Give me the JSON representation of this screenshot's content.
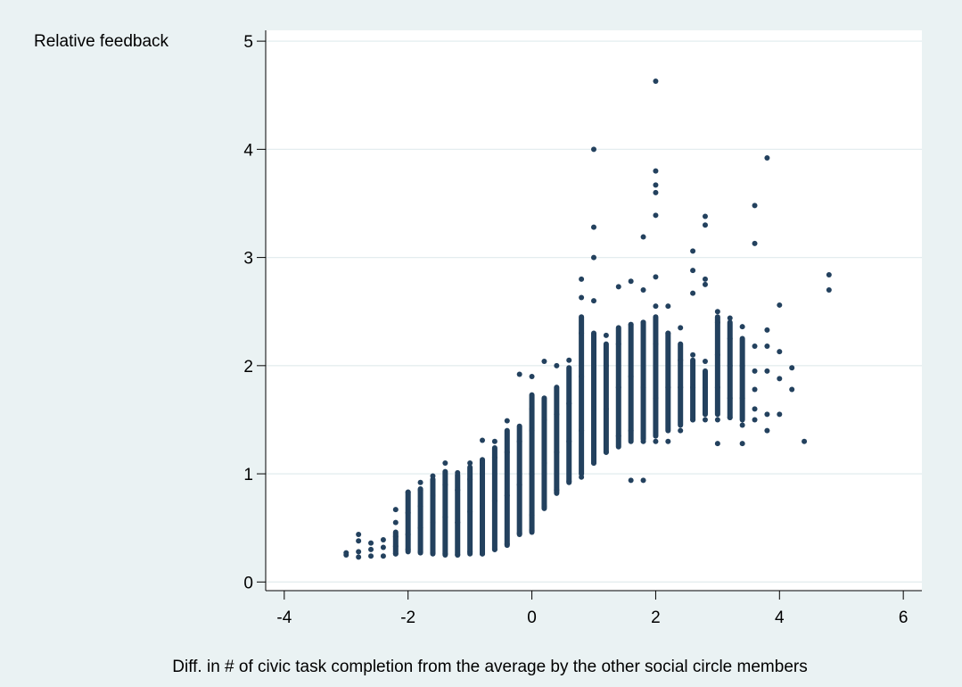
{
  "chart_data": {
    "type": "scatter",
    "title": "",
    "xlabel": "Diff. in # of civic task completion from the average by the other social circle members",
    "ylabel": "Relative feedback",
    "xlim": [
      -4.3,
      6.3
    ],
    "ylim": [
      -0.08,
      5.1
    ],
    "xticks": [
      -4,
      -2,
      0,
      2,
      4,
      6
    ],
    "yticks": [
      0,
      1,
      2,
      3,
      4,
      5
    ],
    "grid": true,
    "background_color": "#eaf2f3",
    "plot_background_color": "#ffffff",
    "grid_color": "#e4edef",
    "marker_color": "#23415e",
    "series": [
      {
        "points": [
          [
            -3.0,
            0.25
          ],
          [
            -3.0,
            0.27
          ],
          [
            -2.8,
            0.23
          ],
          [
            -2.8,
            0.28
          ],
          [
            -2.8,
            0.38
          ],
          [
            -2.8,
            0.44
          ],
          [
            -2.6,
            0.24
          ],
          [
            -2.6,
            0.3
          ],
          [
            -2.6,
            0.36
          ],
          [
            -2.4,
            0.24
          ],
          [
            -2.4,
            0.32
          ],
          [
            -2.4,
            0.39
          ],
          [
            -2.2,
            0.26
          ],
          [
            -2.2,
            0.33
          ],
          [
            -2.2,
            0.42
          ],
          [
            -2.2,
            0.55
          ],
          [
            -2.2,
            0.67
          ],
          [
            -2.0,
            0.3
          ],
          [
            -2.0,
            0.44
          ],
          [
            -2.0,
            0.64
          ],
          [
            -2.0,
            0.83
          ],
          [
            -1.8,
            0.28
          ],
          [
            -1.8,
            0.5
          ],
          [
            -1.8,
            0.7
          ],
          [
            -1.8,
            0.85
          ],
          [
            -1.8,
            0.92
          ],
          [
            -1.6,
            0.27
          ],
          [
            -1.6,
            0.55
          ],
          [
            -1.6,
            0.8
          ],
          [
            -1.6,
            0.98
          ],
          [
            -1.4,
            0.26
          ],
          [
            -1.4,
            0.6
          ],
          [
            -1.4,
            0.9
          ],
          [
            -1.4,
            1.1
          ],
          [
            -1.2,
            0.25
          ],
          [
            -1.2,
            0.55
          ],
          [
            -1.2,
            0.85
          ],
          [
            -1.2,
            1.01
          ],
          [
            -1.0,
            0.28
          ],
          [
            -1.0,
            0.65
          ],
          [
            -1.0,
            0.95
          ],
          [
            -1.0,
            1.1
          ],
          [
            -0.8,
            0.26
          ],
          [
            -0.8,
            0.7
          ],
          [
            -0.8,
            1.1
          ],
          [
            -0.8,
            1.31
          ],
          [
            -0.6,
            0.3
          ],
          [
            -0.6,
            0.75
          ],
          [
            -0.6,
            1.15
          ],
          [
            -0.6,
            1.3
          ],
          [
            -0.4,
            0.35
          ],
          [
            -0.4,
            0.8
          ],
          [
            -0.4,
            1.2
          ],
          [
            -0.4,
            1.49
          ],
          [
            -0.2,
            0.45
          ],
          [
            -0.2,
            0.9
          ],
          [
            -0.2,
            1.3
          ],
          [
            -0.2,
            1.92
          ],
          [
            0.0,
            0.48
          ],
          [
            0.0,
            0.62
          ],
          [
            0.0,
            1.0
          ],
          [
            0.0,
            1.4
          ],
          [
            0.0,
            1.6
          ],
          [
            0.0,
            1.9
          ],
          [
            0.2,
            0.7
          ],
          [
            0.2,
            1.1
          ],
          [
            0.2,
            1.5
          ],
          [
            0.2,
            2.04
          ],
          [
            0.4,
            0.85
          ],
          [
            0.4,
            1.2
          ],
          [
            0.4,
            1.55
          ],
          [
            0.4,
            2.0
          ],
          [
            0.6,
            0.93
          ],
          [
            0.6,
            1.3
          ],
          [
            0.6,
            1.65
          ],
          [
            0.6,
            2.05
          ],
          [
            0.8,
            0.97
          ],
          [
            0.8,
            1.4
          ],
          [
            0.8,
            1.9
          ],
          [
            0.8,
            2.3
          ],
          [
            0.8,
            2.63
          ],
          [
            0.8,
            2.8
          ],
          [
            1.0,
            1.1
          ],
          [
            1.0,
            1.6
          ],
          [
            1.0,
            2.2
          ],
          [
            1.0,
            2.6
          ],
          [
            1.0,
            3.0
          ],
          [
            1.0,
            3.28
          ],
          [
            1.0,
            4.0
          ],
          [
            1.2,
            1.2
          ],
          [
            1.2,
            1.6
          ],
          [
            1.2,
            2.0
          ],
          [
            1.2,
            2.28
          ],
          [
            1.4,
            1.35
          ],
          [
            1.4,
            1.8
          ],
          [
            1.4,
            2.2
          ],
          [
            1.4,
            2.73
          ],
          [
            1.6,
            0.94
          ],
          [
            1.6,
            1.4
          ],
          [
            1.6,
            1.9
          ],
          [
            1.6,
            2.38
          ],
          [
            1.6,
            2.78
          ],
          [
            1.8,
            0.94
          ],
          [
            1.8,
            1.3
          ],
          [
            1.8,
            1.8
          ],
          [
            1.8,
            2.4
          ],
          [
            1.8,
            2.7
          ],
          [
            1.8,
            3.19
          ],
          [
            2.0,
            1.3
          ],
          [
            2.0,
            1.7
          ],
          [
            2.0,
            2.2
          ],
          [
            2.0,
            2.55
          ],
          [
            2.0,
            2.82
          ],
          [
            2.0,
            3.39
          ],
          [
            2.0,
            3.6
          ],
          [
            2.0,
            3.67
          ],
          [
            2.0,
            3.8
          ],
          [
            2.0,
            4.63
          ],
          [
            2.2,
            1.3
          ],
          [
            2.2,
            1.8
          ],
          [
            2.2,
            2.3
          ],
          [
            2.2,
            2.55
          ],
          [
            2.4,
            1.4
          ],
          [
            2.4,
            1.8
          ],
          [
            2.4,
            2.05
          ],
          [
            2.4,
            2.35
          ],
          [
            2.6,
            1.5
          ],
          [
            2.6,
            1.8
          ],
          [
            2.6,
            2.1
          ],
          [
            2.6,
            2.67
          ],
          [
            2.6,
            2.88
          ],
          [
            2.6,
            3.06
          ],
          [
            2.8,
            1.5
          ],
          [
            2.8,
            1.8
          ],
          [
            2.8,
            2.04
          ],
          [
            2.8,
            2.75
          ],
          [
            2.8,
            2.8
          ],
          [
            2.8,
            3.3
          ],
          [
            2.8,
            3.38
          ],
          [
            3.0,
            1.28
          ],
          [
            3.0,
            1.5
          ],
          [
            3.0,
            1.8
          ],
          [
            3.0,
            2.1
          ],
          [
            3.0,
            2.4
          ],
          [
            3.0,
            2.5
          ],
          [
            3.2,
            1.52
          ],
          [
            3.2,
            1.7
          ],
          [
            3.2,
            2.0
          ],
          [
            3.2,
            2.25
          ],
          [
            3.2,
            2.44
          ],
          [
            3.4,
            1.28
          ],
          [
            3.4,
            1.45
          ],
          [
            3.4,
            1.7
          ],
          [
            3.4,
            2.0
          ],
          [
            3.4,
            2.36
          ],
          [
            3.6,
            1.5
          ],
          [
            3.6,
            1.6
          ],
          [
            3.6,
            1.78
          ],
          [
            3.6,
            1.95
          ],
          [
            3.6,
            2.18
          ],
          [
            3.6,
            3.13
          ],
          [
            3.6,
            3.48
          ],
          [
            3.8,
            1.4
          ],
          [
            3.8,
            1.55
          ],
          [
            3.8,
            1.95
          ],
          [
            3.8,
            2.18
          ],
          [
            3.8,
            2.33
          ],
          [
            3.8,
            3.92
          ],
          [
            4.0,
            1.55
          ],
          [
            4.0,
            1.88
          ],
          [
            4.0,
            2.13
          ],
          [
            4.0,
            2.56
          ],
          [
            4.2,
            1.78
          ],
          [
            4.2,
            1.98
          ],
          [
            4.4,
            1.3
          ],
          [
            4.8,
            2.7
          ],
          [
            4.8,
            2.84
          ]
        ],
        "columns": [
          [
            -2.2,
            0.26,
            0.46
          ],
          [
            -2.0,
            0.28,
            0.83
          ],
          [
            -1.8,
            0.27,
            0.86
          ],
          [
            -1.6,
            0.26,
            0.95
          ],
          [
            -1.4,
            0.25,
            1.02
          ],
          [
            -1.2,
            0.25,
            0.99
          ],
          [
            -1.0,
            0.26,
            1.06
          ],
          [
            -0.8,
            0.26,
            1.13
          ],
          [
            -0.6,
            0.3,
            1.24
          ],
          [
            -0.4,
            0.34,
            1.4
          ],
          [
            -0.2,
            0.44,
            1.44
          ],
          [
            0.0,
            0.46,
            1.73
          ],
          [
            0.2,
            0.68,
            1.7
          ],
          [
            0.4,
            0.82,
            1.8
          ],
          [
            0.6,
            0.92,
            1.98
          ],
          [
            0.8,
            1.0,
            2.45
          ],
          [
            1.0,
            1.1,
            2.3
          ],
          [
            1.2,
            1.2,
            2.2
          ],
          [
            1.4,
            1.25,
            2.35
          ],
          [
            1.6,
            1.3,
            2.38
          ],
          [
            1.8,
            1.32,
            2.4
          ],
          [
            2.0,
            1.35,
            2.45
          ],
          [
            2.2,
            1.4,
            2.3
          ],
          [
            2.4,
            1.45,
            2.2
          ],
          [
            2.6,
            1.5,
            2.05
          ],
          [
            2.8,
            1.55,
            1.95
          ],
          [
            3.0,
            1.55,
            2.45
          ],
          [
            3.2,
            1.52,
            2.4
          ],
          [
            3.4,
            1.5,
            2.25
          ]
        ]
      }
    ]
  }
}
